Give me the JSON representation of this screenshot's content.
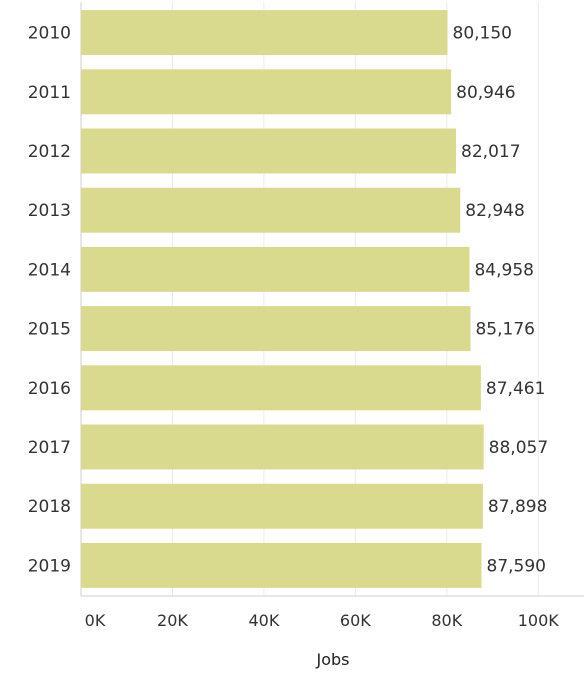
{
  "chart_data": {
    "type": "bar",
    "orientation": "horizontal",
    "categories": [
      "2010",
      "2011",
      "2012",
      "2013",
      "2014",
      "2015",
      "2016",
      "2017",
      "2018",
      "2019"
    ],
    "values": [
      80150,
      80946,
      82017,
      82948,
      84958,
      85176,
      87461,
      88057,
      87898,
      87590
    ],
    "data_labels": [
      "80,150",
      "80,946",
      "82,017",
      "82,948",
      "84,958",
      "85,176",
      "87,461",
      "88,057",
      "87,898",
      "87,590"
    ],
    "xlabel": "Jobs",
    "ylabel": "",
    "xlim": [
      0,
      110000
    ],
    "x_ticks": [
      0,
      20000,
      40000,
      60000,
      80000,
      100000
    ],
    "x_tick_labels": [
      "0K",
      "20K",
      "40K",
      "60K",
      "80K",
      "100K"
    ],
    "bar_color": "#dada8e",
    "grid": true,
    "legend": false
  }
}
